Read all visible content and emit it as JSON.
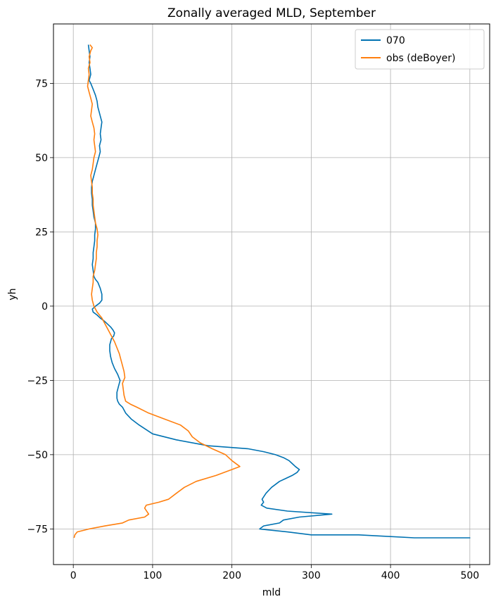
{
  "chart_data": {
    "type": "line",
    "title": "Zonally averaged MLD, September",
    "xlabel": "mld",
    "ylabel": "yh",
    "xlim": [
      -25,
      525
    ],
    "ylim": [
      -87,
      95
    ],
    "xticks": [
      0,
      100,
      200,
      300,
      400,
      500
    ],
    "yticks": [
      -75,
      -50,
      -25,
      0,
      25,
      50,
      75
    ],
    "grid": true,
    "legend_position": "top-right",
    "series": [
      {
        "name": "070",
        "color": "#0072b2",
        "points": [
          [
            19,
            88
          ],
          [
            20,
            86
          ],
          [
            21,
            84
          ],
          [
            20,
            82
          ],
          [
            21,
            80
          ],
          [
            22,
            78
          ],
          [
            20,
            76
          ],
          [
            22,
            75
          ],
          [
            25,
            73
          ],
          [
            28,
            71
          ],
          [
            30,
            69
          ],
          [
            31,
            67
          ],
          [
            33,
            65
          ],
          [
            34,
            64
          ],
          [
            36,
            62
          ],
          [
            35,
            60
          ],
          [
            34,
            58
          ],
          [
            35,
            56
          ],
          [
            33,
            54
          ],
          [
            34,
            52
          ],
          [
            32,
            50
          ],
          [
            30,
            48
          ],
          [
            28,
            46
          ],
          [
            26,
            44
          ],
          [
            24,
            42
          ],
          [
            23,
            40
          ],
          [
            23,
            38
          ],
          [
            24,
            36
          ],
          [
            24,
            34
          ],
          [
            25,
            32
          ],
          [
            26,
            30
          ],
          [
            28,
            28
          ],
          [
            28,
            26
          ],
          [
            27,
            24
          ],
          [
            27,
            22
          ],
          [
            26,
            20
          ],
          [
            25,
            18
          ],
          [
            25,
            16
          ],
          [
            24,
            14
          ],
          [
            25,
            12
          ],
          [
            26,
            10
          ],
          [
            28,
            9
          ],
          [
            31,
            8
          ],
          [
            34,
            6
          ],
          [
            36,
            4
          ],
          [
            36,
            2
          ],
          [
            33,
            1
          ],
          [
            28,
            0
          ],
          [
            24,
            -1
          ],
          [
            25,
            -2
          ],
          [
            30,
            -3
          ],
          [
            34,
            -4
          ],
          [
            39,
            -5
          ],
          [
            43,
            -6
          ],
          [
            47,
            -7
          ],
          [
            50,
            -8
          ],
          [
            52,
            -9
          ],
          [
            51,
            -10
          ],
          [
            48,
            -11
          ],
          [
            47,
            -12
          ],
          [
            46,
            -13
          ],
          [
            46,
            -15
          ],
          [
            47,
            -17
          ],
          [
            49,
            -19
          ],
          [
            52,
            -21
          ],
          [
            56,
            -23
          ],
          [
            59,
            -25
          ],
          [
            57,
            -27
          ],
          [
            55,
            -29
          ],
          [
            55,
            -31
          ],
          [
            56,
            -32
          ],
          [
            58,
            -33
          ],
          [
            62,
            -34
          ],
          [
            66,
            -36
          ],
          [
            73,
            -38
          ],
          [
            83,
            -40
          ],
          [
            100,
            -43
          ],
          [
            130,
            -45
          ],
          [
            170,
            -47
          ],
          [
            220,
            -48
          ],
          [
            240,
            -49
          ],
          [
            255,
            -50
          ],
          [
            265,
            -51
          ],
          [
            272,
            -52
          ],
          [
            276,
            -53
          ],
          [
            280,
            -54
          ],
          [
            285,
            -55
          ],
          [
            282,
            -56
          ],
          [
            276,
            -57
          ],
          [
            268,
            -58
          ],
          [
            260,
            -59
          ],
          [
            250,
            -61
          ],
          [
            243,
            -63
          ],
          [
            238,
            -65
          ],
          [
            240,
            -66
          ],
          [
            237,
            -67
          ],
          [
            244,
            -68
          ],
          [
            270,
            -69
          ],
          [
            326,
            -70
          ],
          [
            285,
            -71
          ],
          [
            265,
            -72
          ],
          [
            260,
            -73
          ],
          [
            240,
            -74
          ],
          [
            235,
            -75
          ],
          [
            270,
            -76
          ],
          [
            300,
            -77
          ],
          [
            360,
            -77
          ],
          [
            430,
            -78
          ],
          [
            500,
            -78
          ],
          [
            460,
            -78
          ]
        ]
      },
      {
        "name": "obs (deBoyer)",
        "color": "#ff7f0e",
        "points": [
          [
            21,
            88
          ],
          [
            24,
            87
          ],
          [
            22,
            86
          ],
          [
            20,
            84
          ],
          [
            21,
            82
          ],
          [
            19,
            80
          ],
          [
            20,
            78
          ],
          [
            19,
            76
          ],
          [
            18,
            74
          ],
          [
            20,
            72
          ],
          [
            22,
            70
          ],
          [
            24,
            68
          ],
          [
            23,
            66
          ],
          [
            22,
            64
          ],
          [
            24,
            62
          ],
          [
            26,
            60
          ],
          [
            27,
            58
          ],
          [
            26,
            56
          ],
          [
            27,
            54
          ],
          [
            28,
            52
          ],
          [
            26,
            50
          ],
          [
            25,
            48
          ],
          [
            24,
            46
          ],
          [
            22,
            44
          ],
          [
            23,
            42
          ],
          [
            24,
            40
          ],
          [
            24,
            38
          ],
          [
            25,
            36
          ],
          [
            25,
            34
          ],
          [
            26,
            32
          ],
          [
            27,
            30
          ],
          [
            28,
            28
          ],
          [
            30,
            26
          ],
          [
            31,
            24
          ],
          [
            30,
            22
          ],
          [
            30,
            20
          ],
          [
            29,
            18
          ],
          [
            29,
            16
          ],
          [
            28,
            14
          ],
          [
            27,
            12
          ],
          [
            25,
            10
          ],
          [
            25,
            8
          ],
          [
            24,
            6
          ],
          [
            23,
            4
          ],
          [
            24,
            2
          ],
          [
            26,
            0
          ],
          [
            30,
            -2
          ],
          [
            36,
            -4
          ],
          [
            40,
            -6
          ],
          [
            44,
            -8
          ],
          [
            48,
            -10
          ],
          [
            52,
            -12
          ],
          [
            55,
            -14
          ],
          [
            58,
            -16
          ],
          [
            60,
            -18
          ],
          [
            62,
            -20
          ],
          [
            64,
            -22
          ],
          [
            65,
            -24
          ],
          [
            62,
            -26
          ],
          [
            63,
            -28
          ],
          [
            64,
            -30
          ],
          [
            66,
            -32
          ],
          [
            72,
            -33
          ],
          [
            80,
            -34
          ],
          [
            95,
            -36
          ],
          [
            115,
            -38
          ],
          [
            135,
            -40
          ],
          [
            145,
            -42
          ],
          [
            150,
            -44
          ],
          [
            160,
            -46
          ],
          [
            175,
            -48
          ],
          [
            192,
            -50
          ],
          [
            200,
            -52
          ],
          [
            210,
            -54
          ],
          [
            200,
            -55
          ],
          [
            180,
            -57
          ],
          [
            155,
            -59
          ],
          [
            140,
            -61
          ],
          [
            130,
            -63
          ],
          [
            120,
            -65
          ],
          [
            108,
            -66
          ],
          [
            92,
            -67
          ],
          [
            90,
            -68
          ],
          [
            95,
            -70
          ],
          [
            90,
            -71
          ],
          [
            70,
            -72
          ],
          [
            62,
            -73
          ],
          [
            40,
            -74
          ],
          [
            20,
            -75
          ],
          [
            5,
            -76
          ],
          [
            2,
            -77
          ],
          [
            1,
            -78
          ]
        ]
      }
    ]
  }
}
